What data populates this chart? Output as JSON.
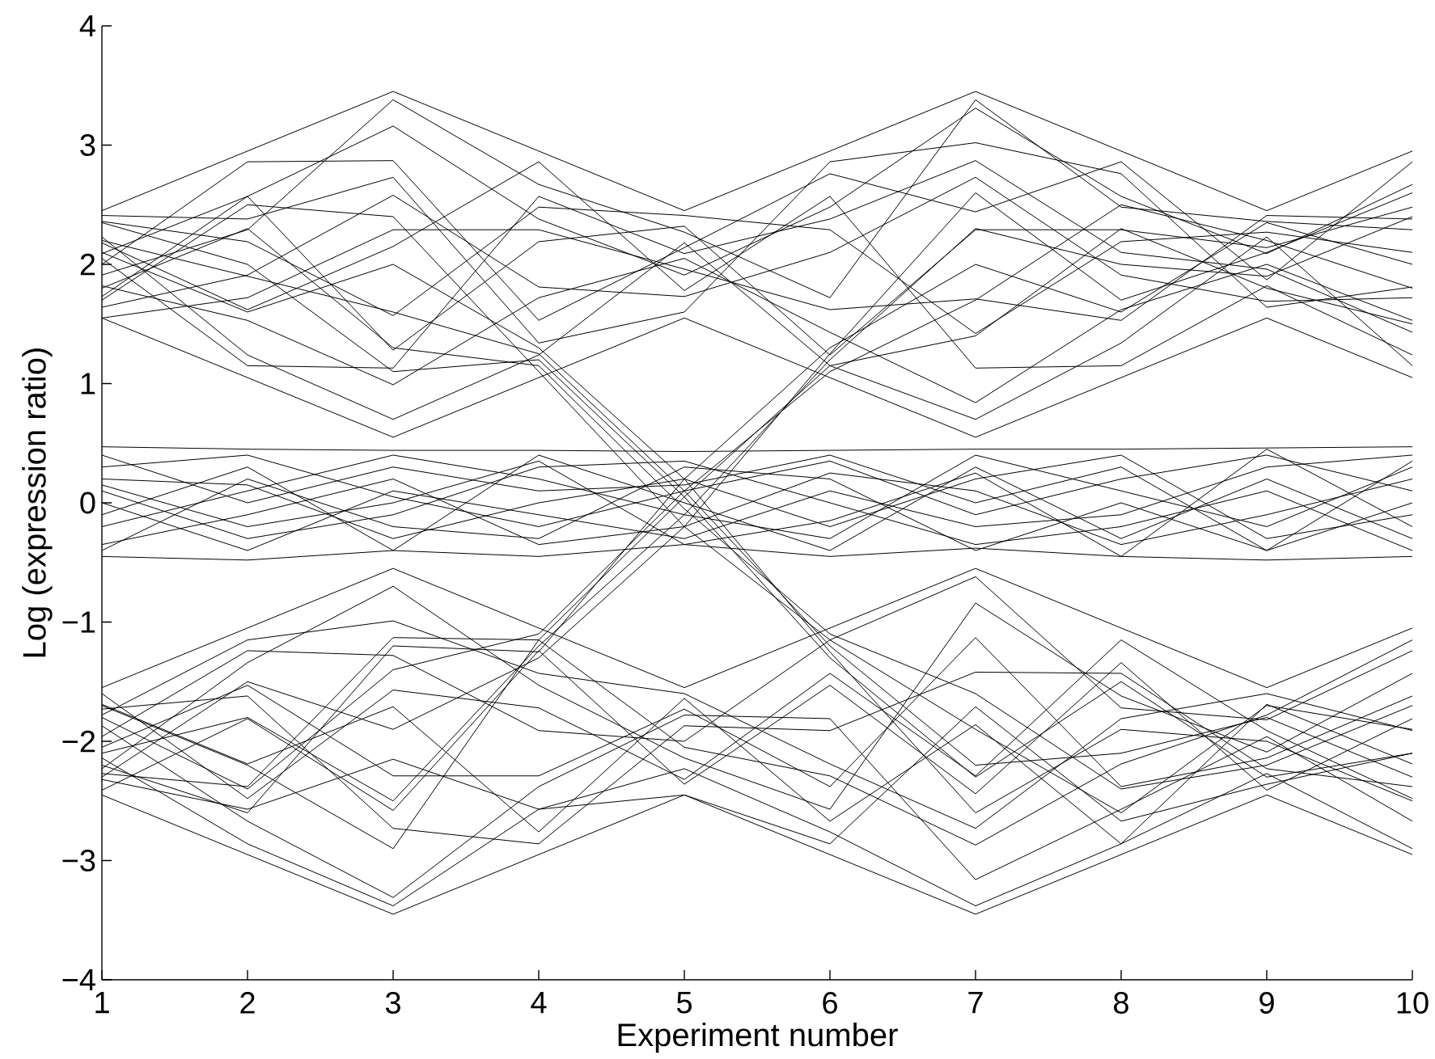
{
  "chart_data": {
    "type": "line",
    "xlabel": "Experiment number",
    "ylabel": "Log (expression ratio)",
    "x": [
      1,
      2,
      3,
      4,
      5,
      6,
      7,
      8,
      9,
      10
    ],
    "xlim": [
      1,
      10
    ],
    "ylim": [
      -4,
      4
    ],
    "xticks": [
      1,
      2,
      3,
      4,
      5,
      6,
      7,
      8,
      9,
      10
    ],
    "yticks": [
      {
        "value": -4,
        "label": "−4"
      },
      {
        "value": -3,
        "label": "−3"
      },
      {
        "value": -2,
        "label": "−2"
      },
      {
        "value": -1,
        "label": "−1"
      },
      0,
      1,
      2,
      3,
      4
    ],
    "line_style": "solid",
    "series": [
      {
        "color": "#000000",
        "values": [
          2.45,
          2.95,
          3.45,
          2.95,
          2.45,
          2.95,
          3.45,
          2.95,
          2.45,
          2.95
        ]
      },
      {
        "color": "#000000",
        "values": [
          1.55,
          1.05,
          0.55,
          1.05,
          1.55,
          1.05,
          0.55,
          1.05,
          1.55,
          1.05
        ]
      },
      {
        "color": "#000000",
        "values": [
          2.09,
          2.57,
          3.16,
          2.38,
          1.91,
          2.48,
          3.31,
          2.57,
          2.09,
          2.67
        ]
      },
      {
        "color": "#000000",
        "values": [
          1.82,
          1.53,
          0.99,
          1.72,
          2.05,
          1.43,
          0.84,
          1.62,
          2.0,
          1.53
        ]
      },
      {
        "color": "#000000",
        "values": [
          2.36,
          2.19,
          1.57,
          2.48,
          2.41,
          2.29,
          1.42,
          2.19,
          2.27,
          2.1
        ]
      },
      {
        "color": "#000000",
        "values": [
          1.64,
          1.91,
          2.58,
          1.81,
          1.73,
          2.1,
          2.73,
          1.91,
          1.69,
          1.72
        ]
      },
      {
        "color": "#000000",
        "values": [
          2.0,
          2.86,
          2.87,
          1.53,
          2.14,
          2.76,
          2.44,
          2.86,
          1.87,
          2.86
        ]
      },
      {
        "color": "#000000",
        "values": [
          2.23,
          1.24,
          0.7,
          1.24,
          2.18,
          1.15,
          0.7,
          1.34,
          2.23,
          1.15
        ]
      },
      {
        "color": "#000000",
        "values": [
          1.91,
          2.29,
          3.38,
          2.67,
          2.27,
          1.72,
          3.38,
          2.48,
          2.36,
          2.29
        ]
      },
      {
        "color": "#000000",
        "values": [
          2.18,
          1.62,
          2.15,
          2.86,
          1.78,
          2.57,
          1.13,
          1.15,
          1.82,
          1.24
        ]
      },
      {
        "color": "#000000",
        "values": [
          1.73,
          2.57,
          1.28,
          2.19,
          2.32,
          1.24,
          2.29,
          2.29,
          2.14,
          2.48
        ]
      },
      {
        "color": "#000000",
        "values": [
          2.41,
          2.38,
          2.73,
          1.34,
          1.6,
          2.86,
          3.02,
          2.76,
          1.64,
          1.81
        ]
      },
      {
        "color": "#000000",
        "values": [
          1.55,
          1.72,
          2.29,
          2.29,
          1.96,
          1.62,
          1.71,
          1.53,
          2.41,
          2.38
        ]
      },
      {
        "color": "#000000",
        "values": [
          2.05,
          1.15,
          1.13,
          2.57,
          2.09,
          2.38,
          2.87,
          2.1,
          1.96,
          1.43
        ]
      },
      {
        "color": "#000000",
        "values": [
          0.47,
          0.45,
          0.44,
          0.44,
          0.43,
          0.44,
          0.45,
          0.45,
          0.46,
          0.47
        ]
      },
      {
        "color": "#000000",
        "values": [
          -0.45,
          -0.48,
          -0.4,
          -0.45,
          -0.35,
          -0.45,
          -0.38,
          -0.45,
          -0.48,
          -0.45
        ]
      },
      {
        "color": "#000000",
        "values": [
          0.3,
          0.4,
          0.05,
          -0.2,
          0.1,
          0.35,
          -0.1,
          0.2,
          0.4,
          0.1
        ]
      },
      {
        "color": "#000000",
        "values": [
          -0.2,
          0.1,
          0.4,
          0.2,
          -0.1,
          -0.3,
          0.4,
          0.1,
          -0.2,
          0.3
        ]
      },
      {
        "color": "#000000",
        "values": [
          0.1,
          -0.3,
          -0.1,
          0.3,
          0.35,
          0,
          -0.35,
          -0.2,
          0.1,
          -0.4
        ]
      },
      {
        "color": "#000000",
        "values": [
          -0.35,
          -0.1,
          0.2,
          -0.35,
          -0.2,
          0.25,
          0.1,
          -0.35,
          -0.1,
          0.2
        ]
      },
      {
        "color": "#000000",
        "values": [
          0.2,
          0.15,
          -0.3,
          0,
          0.2,
          -0.2,
          0.2,
          0.4,
          -0.3,
          -0.1
        ]
      },
      {
        "color": "#000000",
        "values": [
          0,
          -0.4,
          0.1,
          -0.1,
          -0.3,
          0.1,
          -0.2,
          -0.1,
          0.3,
          0.4
        ]
      },
      {
        "color": "#000000",
        "values": [
          -0.1,
          0.3,
          -0.4,
          0.4,
          0,
          -0.4,
          0.3,
          -0.3,
          0.2,
          -0.3
        ]
      },
      {
        "color": "#000000",
        "values": [
          0.4,
          0,
          0.3,
          0.1,
          0.15,
          0.4,
          0,
          0.3,
          -0.4,
          0
        ]
      },
      {
        "color": "#000000",
        "values": [
          -0.4,
          0.2,
          -0.2,
          -0.3,
          0.3,
          0.2,
          -0.4,
          0,
          -0.4,
          0.35
        ]
      },
      {
        "color": "#000000",
        "values": [
          0.15,
          -0.2,
          0,
          0.35,
          -0.35,
          -0.15,
          0.25,
          -0.45,
          0.45,
          -0.2
        ]
      },
      {
        "color": "#000000",
        "values": [
          -1.55,
          -1.05,
          -0.55,
          -1.05,
          -1.55,
          -1.05,
          -0.55,
          -1.05,
          -1.55,
          -1.05
        ]
      },
      {
        "color": "#000000",
        "values": [
          -2.45,
          -2.95,
          -3.45,
          -2.95,
          -2.45,
          -2.95,
          -3.45,
          -2.95,
          -2.45,
          -2.95
        ]
      },
      {
        "color": "#000000",
        "values": [
          -1.87,
          -2.67,
          -3.31,
          -2.38,
          -1.78,
          -1.81,
          -3.16,
          -2.57,
          -1.96,
          -2.67
        ]
      },
      {
        "color": "#000000",
        "values": [
          -2.23,
          -1.34,
          -0.7,
          -1.53,
          -2.14,
          -2.57,
          -0.84,
          -1.62,
          -2.09,
          -1.43
        ]
      },
      {
        "color": "#000000",
        "values": [
          -1.69,
          -2.19,
          -1.71,
          -2.76,
          -1.64,
          -2.67,
          -1.86,
          -2.86,
          -1.69,
          -2.19
        ]
      },
      {
        "color": "#000000",
        "values": [
          -2.41,
          -1.81,
          -2.58,
          -1.24,
          -2.36,
          -1.53,
          -2.44,
          -1.34,
          -2.41,
          -1.81
        ]
      },
      {
        "color": "#000000",
        "values": [
          -1.96,
          -1.24,
          -1.28,
          -1.91,
          -2.0,
          -1.15,
          -0.62,
          -1.72,
          -1.82,
          -1.24
        ]
      },
      {
        "color": "#000000",
        "values": [
          -2.14,
          -2.86,
          -3.38,
          -2.57,
          -2.23,
          -2.76,
          -3.38,
          -2.86,
          -2.27,
          -2.9
        ]
      },
      {
        "color": "#000000",
        "values": [
          -1.73,
          -1.62,
          -2.73,
          -2.86,
          -1.87,
          -1.91,
          -1.42,
          -1.43,
          -2.23,
          -2.38
        ]
      },
      {
        "color": "#000000",
        "values": [
          -2.27,
          -2.38,
          -1.13,
          -1.15,
          -2.05,
          -2.29,
          -2.87,
          -2.19,
          -1.78,
          -1.15
        ]
      },
      {
        "color": "#000000",
        "values": [
          -1.6,
          -2.48,
          -1.57,
          -1.72,
          -2.32,
          -1.43,
          -2.29,
          -1.15,
          -1.91,
          -2.48
        ]
      },
      {
        "color": "#000000",
        "values": [
          -2.05,
          -1.53,
          -2.29,
          -2.29,
          -1.73,
          -2.38,
          -1.13,
          -2.38,
          -2.14,
          -1.62
        ]
      },
      {
        "color": "#000000",
        "values": [
          -1.78,
          -1.15,
          -0.99,
          -1.43,
          -1.6,
          -2.19,
          -2.73,
          -1.81,
          -1.6,
          -1.91
        ]
      },
      {
        "color": "#000000",
        "values": [
          -2.32,
          -2.57,
          -2.15,
          -2.57,
          -2.45,
          -2.86,
          -1.71,
          -2.67,
          -2.36,
          -2.1
        ]
      },
      {
        "color": "#000000",
        "values": [
          2.2,
          1.9,
          1.6,
          1.25,
          0.1,
          -1.2,
          -2.2,
          -2.1,
          -1.8,
          -2.3
        ]
      },
      {
        "color": "#000000",
        "values": [
          1.8,
          2.3,
          1.3,
          1.15,
          -0.05,
          -1.1,
          -1.6,
          -2.4,
          -2.2,
          -1.7
        ]
      },
      {
        "color": "#000000",
        "values": [
          2.1,
          1.6,
          2.0,
          1.3,
          0.2,
          -1.25,
          -2.6,
          -1.9,
          -2.0,
          -2.5
        ]
      },
      {
        "color": "#000000",
        "values": [
          1.7,
          2.5,
          2.4,
          1.1,
          -0.2,
          -1.15,
          -1.9,
          -2.6,
          -1.7,
          -1.9
        ]
      },
      {
        "color": "#000000",
        "values": [
          2.35,
          2.0,
          1.1,
          1.2,
          0.05,
          -1.3,
          -2.3,
          -1.5,
          -2.3,
          -2.1
        ]
      },
      {
        "color": "#000000",
        "values": [
          -2.1,
          -1.8,
          -2.5,
          -1.2,
          -0.1,
          1.2,
          2.3,
          2.0,
          1.9,
          2.4
        ]
      },
      {
        "color": "#000000",
        "values": [
          -1.8,
          -2.4,
          -1.4,
          -1.1,
          0.1,
          1.1,
          1.7,
          2.5,
          2.2,
          1.8
        ]
      },
      {
        "color": "#000000",
        "values": [
          -2.3,
          -1.5,
          -1.9,
          -1.3,
          -0.2,
          1.25,
          2.6,
          1.7,
          2.1,
          2.6
        ]
      },
      {
        "color": "#000000",
        "values": [
          -1.7,
          -2.2,
          -2.9,
          -1.15,
          0.05,
          1.15,
          1.4,
          2.3,
          1.8,
          1.5
        ]
      },
      {
        "color": "#000000",
        "values": [
          -2.2,
          -2.6,
          -1.2,
          -1.25,
          0.2,
          1.3,
          2.0,
          1.6,
          2.35,
          2.0
        ]
      }
    ]
  }
}
